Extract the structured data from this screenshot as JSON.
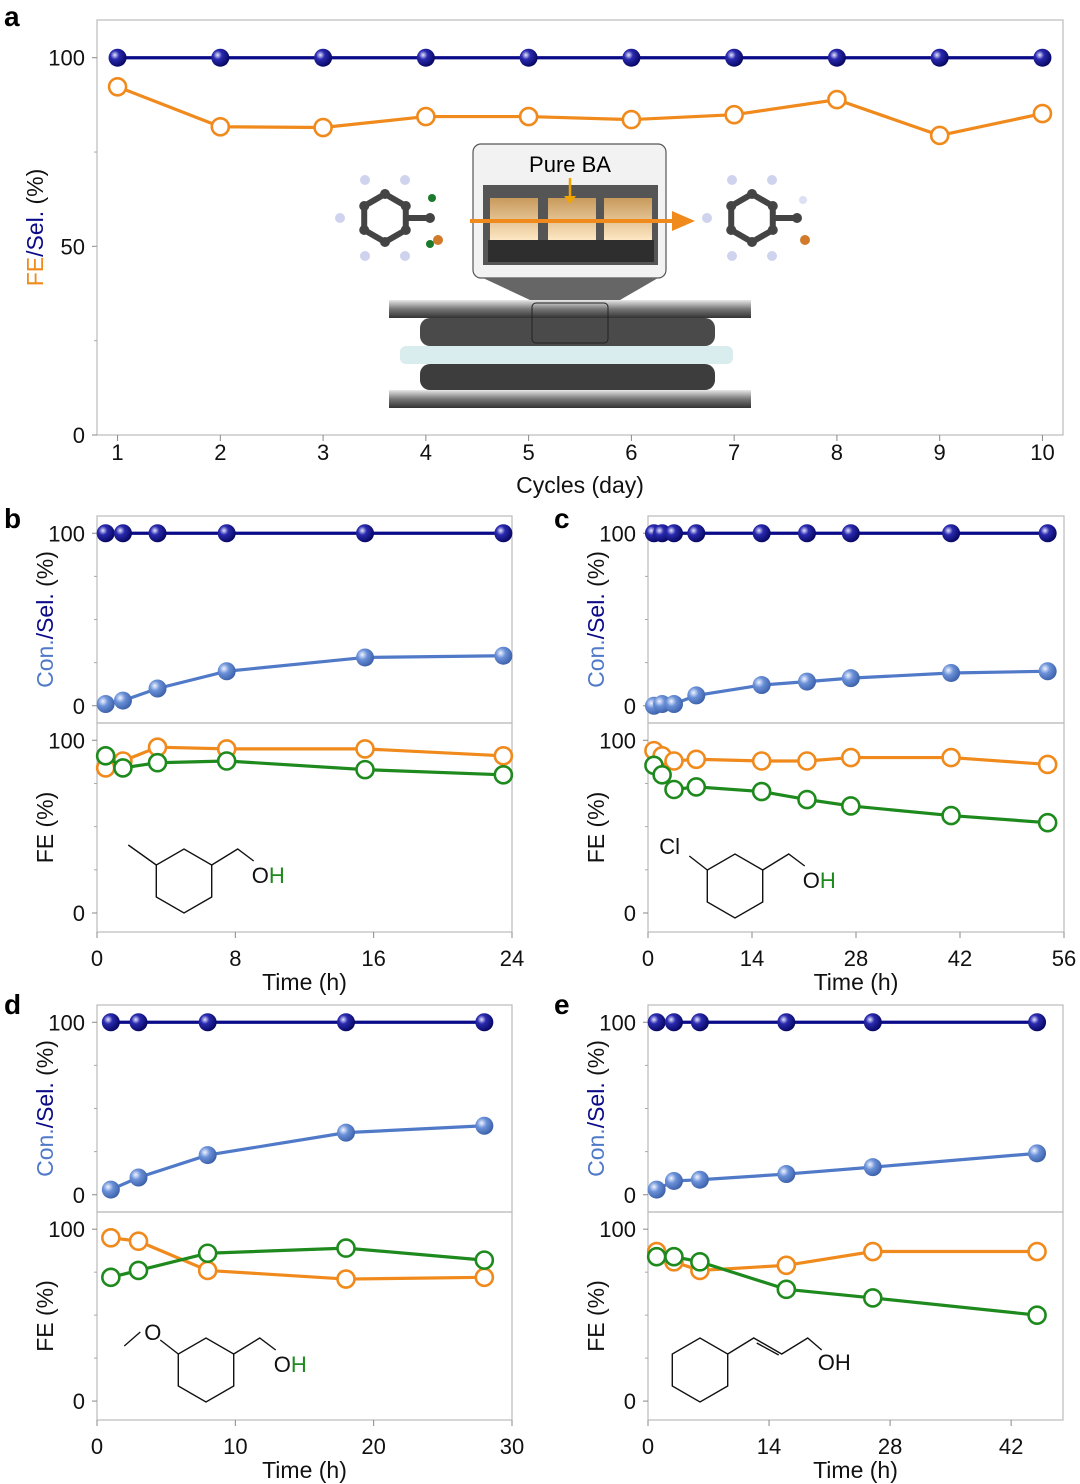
{
  "colors": {
    "sel": "#0b0b8a",
    "con": "#5079c8",
    "fe_orange": "#f08a1c",
    "fe_green": "#1e8a1e",
    "axis": "#bbbbbb"
  },
  "chart_data": [
    {
      "panel": "a",
      "type": "line",
      "xlabel": "Cycles (day)",
      "ylabel": [
        {
          "text": "FE",
          "color": "fe_orange"
        },
        {
          "text": "/Sel.",
          "color": "sel"
        },
        {
          "text": " (%)",
          "color": "black"
        }
      ],
      "x": [
        1,
        2,
        3,
        4,
        5,
        6,
        7,
        8,
        9,
        10
      ],
      "xticks": [
        1,
        2,
        3,
        4,
        5,
        6,
        7,
        8,
        9,
        10
      ],
      "xlim": [
        0.8,
        10.2
      ],
      "plots": [
        {
          "ylim": [
            0,
            110
          ],
          "yticks": [
            0,
            50,
            100
          ],
          "series": [
            {
              "name": "Sel.",
              "color": "sel",
              "marker": "filled",
              "values": [
                100,
                100,
                100,
                100,
                100,
                100,
                100,
                100,
                100,
                100
              ]
            },
            {
              "name": "FE",
              "color": "fe_orange",
              "marker": "open",
              "values": [
                92.3,
                81.7,
                81.5,
                84.4,
                84.4,
                83.6,
                84.9,
                88.9,
                79.4,
                85.2
              ]
            }
          ]
        }
      ],
      "inset_label": "Pure BA"
    },
    {
      "panel": "b",
      "type": "line",
      "xlabel": "Time (h)",
      "x": [
        0.5,
        1.5,
        3.5,
        7.5,
        15.5,
        23.5
      ],
      "xticks": [
        0,
        8,
        16,
        24
      ],
      "xlim": [
        0,
        24
      ],
      "plots": [
        {
          "ylim": [
            -10,
            110
          ],
          "yticks": [
            0,
            100
          ],
          "ylabel": [
            {
              "text": "Con.",
              "color": "con"
            },
            {
              "text": "/Sel.",
              "color": "sel"
            },
            {
              "text": " (%)",
              "color": "black"
            }
          ],
          "series": [
            {
              "name": "Sel.",
              "color": "sel",
              "marker": "filled",
              "values": [
                100,
                100,
                100,
                100,
                100,
                100
              ]
            },
            {
              "name": "Con.",
              "color": "con",
              "marker": "filled",
              "values": [
                1,
                3,
                10,
                20,
                28,
                29
              ]
            }
          ]
        },
        {
          "ylim": [
            -11,
            110
          ],
          "yticks": [
            0,
            100
          ],
          "ylabel": [
            {
              "text": "FE (%)",
              "color": "black"
            }
          ],
          "series": [
            {
              "name": "FE (orange)",
              "color": "fe_orange",
              "marker": "open",
              "values": [
                84,
                88,
                96,
                95,
                95,
                91
              ]
            },
            {
              "name": "FE (green)",
              "color": "fe_green",
              "marker": "open",
              "values": [
                91,
                84,
                87,
                88,
                83,
                80
              ]
            }
          ]
        }
      ],
      "molecule": {
        "labels": [
          {
            "text": "O",
            "color": "black"
          },
          {
            "text": "H",
            "color": "fe_green"
          }
        ]
      }
    },
    {
      "panel": "c",
      "type": "line",
      "xlabel": "Time (h)",
      "x": [
        0.8,
        1.9,
        3.5,
        6.5,
        15.3,
        21.4,
        27.3,
        40.8,
        53.8
      ],
      "xticks": [
        0,
        14,
        28,
        42,
        56
      ],
      "xlim": [
        0,
        56
      ],
      "plots": [
        {
          "ylim": [
            -10,
            110
          ],
          "yticks": [
            0,
            100
          ],
          "ylabel": [
            {
              "text": "Con.",
              "color": "con"
            },
            {
              "text": "/Sel.",
              "color": "sel"
            },
            {
              "text": " (%)",
              "color": "black"
            }
          ],
          "series": [
            {
              "name": "Sel.",
              "color": "sel",
              "marker": "filled",
              "values": [
                100,
                100,
                100,
                100,
                100,
                100,
                100,
                100,
                100
              ]
            },
            {
              "name": "Con.",
              "color": "con",
              "marker": "filled",
              "values": [
                0,
                1,
                1,
                6,
                12,
                14,
                16,
                19,
                20
              ]
            }
          ]
        },
        {
          "ylim": [
            -11,
            110
          ],
          "yticks": [
            0,
            100
          ],
          "ylabel": [
            {
              "text": "FE (%)",
              "color": "black"
            }
          ],
          "series": [
            {
              "name": "FE (orange)",
              "color": "fe_orange",
              "marker": "open",
              "values": [
                94,
                91,
                88,
                89,
                88,
                88,
                90,
                90,
                86
              ]
            },
            {
              "name": "FE (green)",
              "color": "fe_green",
              "marker": "open",
              "values": [
                85.5,
                80,
                71.5,
                73,
                70.3,
                65.7,
                62,
                56.4,
                52.3
              ]
            }
          ]
        }
      ],
      "molecule": {
        "substituent": "Cl",
        "labels": [
          {
            "text": "O",
            "color": "black"
          },
          {
            "text": "H",
            "color": "fe_green"
          }
        ]
      }
    },
    {
      "panel": "d",
      "type": "line",
      "xlabel": "Time (h)",
      "x": [
        1,
        3,
        8,
        18,
        28
      ],
      "xticks": [
        0,
        10,
        20,
        30
      ],
      "xlim": [
        0,
        30
      ],
      "plots": [
        {
          "ylim": [
            -10,
            110
          ],
          "yticks": [
            0,
            100
          ],
          "ylabel": [
            {
              "text": "Con.",
              "color": "con"
            },
            {
              "text": "/Sel.",
              "color": "sel"
            },
            {
              "text": " (%)",
              "color": "black"
            }
          ],
          "series": [
            {
              "name": "Sel.",
              "color": "sel",
              "marker": "filled",
              "values": [
                100,
                100,
                100,
                100,
                100
              ]
            },
            {
              "name": "Con.",
              "color": "con",
              "marker": "filled",
              "values": [
                3,
                10,
                23,
                36,
                40
              ]
            }
          ]
        },
        {
          "ylim": [
            -11,
            110
          ],
          "yticks": [
            0,
            100
          ],
          "ylabel": [
            {
              "text": "FE (%)",
              "color": "black"
            }
          ],
          "series": [
            {
              "name": "FE (orange)",
              "color": "fe_orange",
              "marker": "open",
              "values": [
                95,
                93,
                76,
                71,
                72
              ]
            },
            {
              "name": "FE (green)",
              "color": "fe_green",
              "marker": "open",
              "values": [
                72,
                76,
                86,
                89,
                82
              ]
            }
          ]
        }
      ],
      "molecule": {
        "substituent": "O",
        "labels": [
          {
            "text": "O",
            "color": "black"
          },
          {
            "text": "H",
            "color": "fe_green"
          }
        ]
      }
    },
    {
      "panel": "e",
      "type": "line",
      "xlabel": "Time (h)",
      "x": [
        1,
        3,
        6,
        16,
        26,
        45
      ],
      "xticks": [
        0,
        14,
        28,
        42
      ],
      "xlim": [
        0,
        48
      ],
      "plots": [
        {
          "ylim": [
            -10,
            110
          ],
          "yticks": [
            0,
            100
          ],
          "ylabel": [
            {
              "text": "Con.",
              "color": "con"
            },
            {
              "text": "/Sel.",
              "color": "sel"
            },
            {
              "text": " (%)",
              "color": "black"
            }
          ],
          "series": [
            {
              "name": "Sel.",
              "color": "sel",
              "marker": "filled",
              "values": [
                100,
                100,
                100,
                100,
                100,
                100
              ]
            },
            {
              "name": "Con.",
              "color": "con",
              "marker": "filled",
              "values": [
                3,
                8,
                8.7,
                12,
                16,
                24
              ]
            }
          ]
        },
        {
          "ylim": [
            -11,
            110
          ],
          "yticks": [
            0,
            100
          ],
          "ylabel": [
            {
              "text": "FE (%)",
              "color": "black"
            }
          ],
          "series": [
            {
              "name": "FE (orange)",
              "color": "fe_orange",
              "marker": "open",
              "values": [
                87,
                81,
                76,
                79,
                87,
                87
              ]
            },
            {
              "name": "FE (green)",
              "color": "fe_green",
              "marker": "open",
              "values": [
                84,
                84,
                81,
                65,
                60,
                50
              ]
            }
          ]
        }
      ],
      "molecule": {
        "labels": [
          {
            "text": "OH",
            "color": "black"
          }
        ]
      }
    }
  ]
}
